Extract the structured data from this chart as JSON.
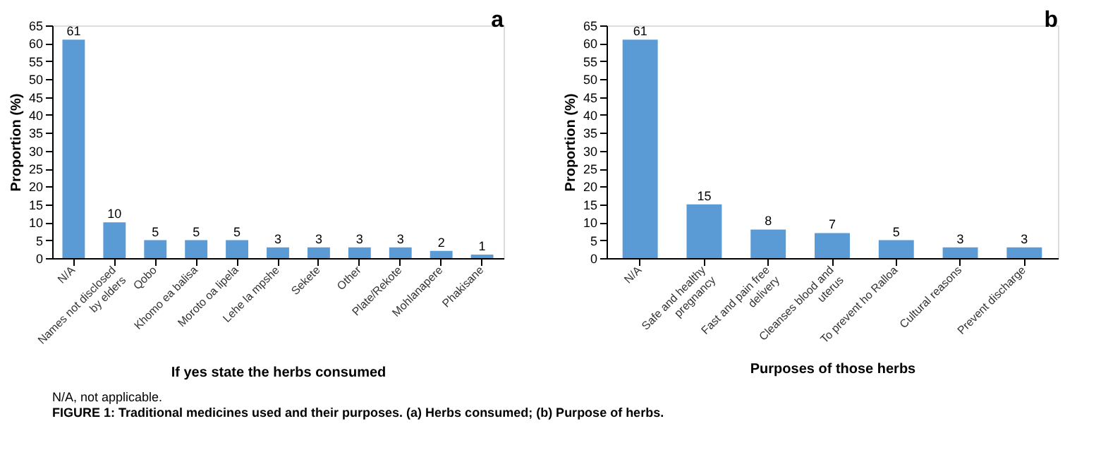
{
  "chart_data": [
    {
      "type": "bar",
      "title": "a",
      "xlabel": "If yes state the herbs consumed",
      "ylabel": "Proportion (%)",
      "categories": [
        "N/A",
        "Names not disclosed by elders",
        "Qobo",
        "Khomo ea balisa",
        "Moroto oa lipela",
        "Lehe la mpshe",
        "Sekete",
        "Other",
        "Plate/Rekote",
        "Mohlanapere",
        "Phakisane"
      ],
      "values": [
        61,
        10,
        5,
        5,
        5,
        3,
        3,
        3,
        3,
        2,
        1
      ],
      "color": "#5b9bd5",
      "data_labels": true,
      "ylim": [
        0,
        65
      ],
      "yticks": [
        0,
        5,
        10,
        15,
        20,
        25,
        30,
        35,
        40,
        45,
        50,
        55,
        60,
        65
      ],
      "grid": false
    },
    {
      "type": "bar",
      "title": "b",
      "xlabel": "Purposes of those herbs",
      "ylabel": "Proportion (%)",
      "categories": [
        "N/A",
        "Safe and healthy pregnancy",
        "Fast and pain free delivery",
        "Cleanses blood and uterus",
        "To prevent ho Ralloa",
        "Cultural reasons",
        "Prevent discharge"
      ],
      "values": [
        61,
        15,
        8,
        7,
        5,
        3,
        3
      ],
      "color": "#5b9bd5",
      "data_labels": true,
      "ylim": [
        0,
        65
      ],
      "yticks": [
        0,
        5,
        10,
        15,
        20,
        25,
        30,
        35,
        40,
        45,
        50,
        55,
        60,
        65
      ],
      "grid": false,
      "annotations": [
        "N/A, not applicable.",
        "FIGURE 1: Traditional medicines used and their purposes. (a) Herbs consumed; (b) Purpose of herbs."
      ]
    }
  ]
}
